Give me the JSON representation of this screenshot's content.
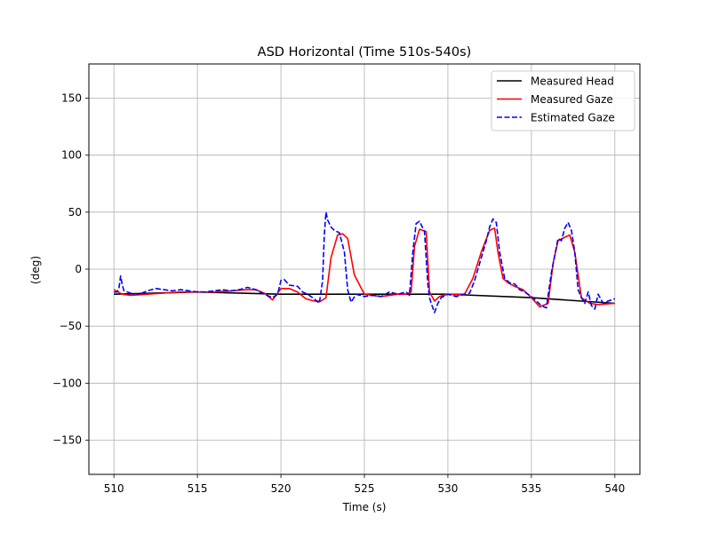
{
  "chart_data": {
    "type": "line",
    "title": "ASD Horizontal (Time 510s-540s)",
    "xlabel": "Time (s)",
    "ylabel": "(deg)",
    "xlim": [
      508.5,
      541.5
    ],
    "ylim": [
      -180,
      180
    ],
    "xticks": [
      510,
      515,
      520,
      525,
      530,
      535,
      540
    ],
    "yticks": [
      -150,
      -100,
      -50,
      0,
      50,
      100,
      150
    ],
    "xtick_labels": [
      "510",
      "515",
      "520",
      "525",
      "530",
      "535",
      "540"
    ],
    "ytick_labels": [
      "−150",
      "−100",
      "−50",
      "0",
      "50",
      "100",
      "150"
    ],
    "grid": true,
    "legend_position": "top-right",
    "series": [
      {
        "name": "Measured Head",
        "color": "#000000",
        "style": "solid",
        "x": [
          510,
          515,
          520,
          525,
          530,
          535,
          540
        ],
        "y": [
          -22,
          -20,
          -22,
          -22,
          -22,
          -25,
          -30
        ]
      },
      {
        "name": "Measured Gaze",
        "color": "#ff0000",
        "style": "solid",
        "x": [
          510.0,
          510.5,
          511.0,
          512.0,
          513.0,
          514.0,
          515.0,
          516.0,
          517.0,
          518.0,
          518.5,
          519.0,
          519.5,
          520.0,
          520.5,
          521.0,
          521.5,
          522.0,
          522.4,
          522.7,
          523.0,
          523.4,
          523.7,
          524.0,
          524.4,
          525.0,
          526.0,
          527.0,
          527.5,
          527.8,
          528.0,
          528.3,
          528.7,
          528.9,
          529.2,
          529.5,
          530.0,
          531.0,
          531.5,
          532.0,
          532.5,
          532.8,
          533.0,
          533.3,
          533.6,
          534.0,
          534.5,
          535.0,
          535.5,
          536.0,
          536.3,
          536.6,
          537.0,
          537.3,
          537.6,
          538.0,
          538.5,
          539.0,
          540.0
        ],
        "y": [
          -18,
          -22,
          -23,
          -22,
          -21,
          -20,
          -20,
          -20,
          -19,
          -18,
          -18,
          -21,
          -27,
          -17,
          -17,
          -20,
          -26,
          -28,
          -28,
          -25,
          10,
          30,
          31,
          27,
          -5,
          -22,
          -24,
          -22,
          -22,
          -20,
          20,
          35,
          33,
          -20,
          -28,
          -24,
          -22,
          -22,
          -8,
          15,
          34,
          36,
          15,
          -8,
          -12,
          -15,
          -18,
          -25,
          -33,
          -30,
          5,
          25,
          28,
          30,
          15,
          -25,
          -30,
          -31,
          -30
        ]
      },
      {
        "name": "Estimated Gaze",
        "color": "#0000ff",
        "style": "dashed",
        "x": [
          510.0,
          510.2,
          510.3,
          510.4,
          510.5,
          510.6,
          511.0,
          511.5,
          512.0,
          512.5,
          513.0,
          513.5,
          514.0,
          514.5,
          515.0,
          515.5,
          516.0,
          516.5,
          517.0,
          517.5,
          518.0,
          518.5,
          519.0,
          519.5,
          519.8,
          520.0,
          520.2,
          520.5,
          521.0,
          521.3,
          521.6,
          522.0,
          522.3,
          522.5,
          522.6,
          522.7,
          522.8,
          523.0,
          523.2,
          523.5,
          523.8,
          524.0,
          524.2,
          524.5,
          525.0,
          525.5,
          526.0,
          526.5,
          527.0,
          527.5,
          527.7,
          527.9,
          528.1,
          528.3,
          528.6,
          528.8,
          528.9,
          529.0,
          529.2,
          529.4,
          529.6,
          530.0,
          530.5,
          531.0,
          531.3,
          531.6,
          532.0,
          532.3,
          532.5,
          532.7,
          532.9,
          533.1,
          533.4,
          533.7,
          534.0,
          534.3,
          534.6,
          535.0,
          535.3,
          535.6,
          535.9,
          536.2,
          536.4,
          536.6,
          536.8,
          537.0,
          537.2,
          537.4,
          537.6,
          537.8,
          538.0,
          538.2,
          538.4,
          538.6,
          538.8,
          539.0,
          539.3,
          539.6,
          540.0
        ],
        "y": [
          -20,
          -20,
          -17,
          -6,
          -14,
          -19,
          -21,
          -22,
          -19,
          -17,
          -18,
          -19,
          -18,
          -19,
          -20,
          -20,
          -19,
          -18,
          -19,
          -18,
          -16,
          -18,
          -22,
          -25,
          -22,
          -10,
          -9,
          -14,
          -15,
          -20,
          -22,
          -26,
          -30,
          -10,
          30,
          50,
          43,
          37,
          34,
          32,
          15,
          -18,
          -29,
          -22,
          -24,
          -23,
          -24,
          -20,
          -22,
          -20,
          -23,
          15,
          40,
          42,
          33,
          -13,
          -25,
          -30,
          -38,
          -30,
          -25,
          -22,
          -24,
          -22,
          -21,
          -10,
          10,
          25,
          37,
          44,
          41,
          15,
          -8,
          -12,
          -13,
          -18,
          -20,
          -24,
          -28,
          -32,
          -34,
          -3,
          12,
          27,
          25,
          36,
          41,
          34,
          15,
          -18,
          -25,
          -30,
          -20,
          -32,
          -35,
          -22,
          -30,
          -28,
          -26
        ]
      }
    ]
  }
}
